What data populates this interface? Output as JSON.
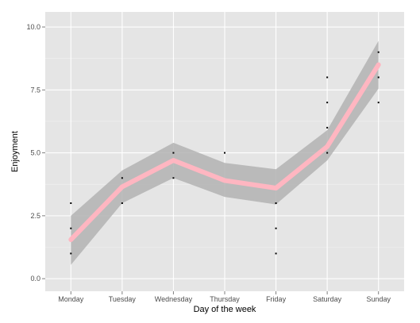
{
  "chart_data": {
    "type": "line",
    "title": "",
    "xlabel": "Day of the week",
    "ylabel": "Enjoyment",
    "categories": [
      "Monday",
      "Tuesday",
      "Wednesday",
      "Thursday",
      "Friday",
      "Saturday",
      "Sunday"
    ],
    "ylim": [
      -0.5,
      10.6
    ],
    "yticks": [
      0.0,
      2.5,
      5.0,
      7.5,
      10.0
    ],
    "ytick_labels": [
      "0.0",
      "2.5",
      "5.0",
      "7.5",
      "10.0"
    ],
    "grid": true,
    "legend": "none",
    "smooth": {
      "name": "",
      "values": [
        1.55,
        3.65,
        4.7,
        3.9,
        3.6,
        5.25,
        8.5
      ],
      "ci_lower": [
        0.55,
        3.0,
        4.0,
        3.25,
        2.95,
        4.7,
        7.55
      ],
      "ci_upper": [
        2.5,
        4.3,
        5.4,
        4.6,
        4.35,
        5.9,
        9.45
      ],
      "color": "#ffb6c1"
    },
    "points": [
      {
        "x": "Monday",
        "y": 3
      },
      {
        "x": "Monday",
        "y": 2
      },
      {
        "x": "Monday",
        "y": 1
      },
      {
        "x": "Tuesday",
        "y": 4
      },
      {
        "x": "Tuesday",
        "y": 3
      },
      {
        "x": "Wednesday",
        "y": 5
      },
      {
        "x": "Wednesday",
        "y": 4
      },
      {
        "x": "Thursday",
        "y": 5
      },
      {
        "x": "Friday",
        "y": 3
      },
      {
        "x": "Friday",
        "y": 2
      },
      {
        "x": "Friday",
        "y": 1
      },
      {
        "x": "Saturday",
        "y": 8
      },
      {
        "x": "Saturday",
        "y": 7
      },
      {
        "x": "Saturday",
        "y": 6
      },
      {
        "x": "Saturday",
        "y": 5
      },
      {
        "x": "Sunday",
        "y": 9
      },
      {
        "x": "Sunday",
        "y": 8
      },
      {
        "x": "Sunday",
        "y": 7
      }
    ],
    "colors": {
      "panel": "#e5e5e5",
      "gridline": "#ffffff",
      "ribbon": "#b3b3b3",
      "point": "#000000"
    }
  }
}
